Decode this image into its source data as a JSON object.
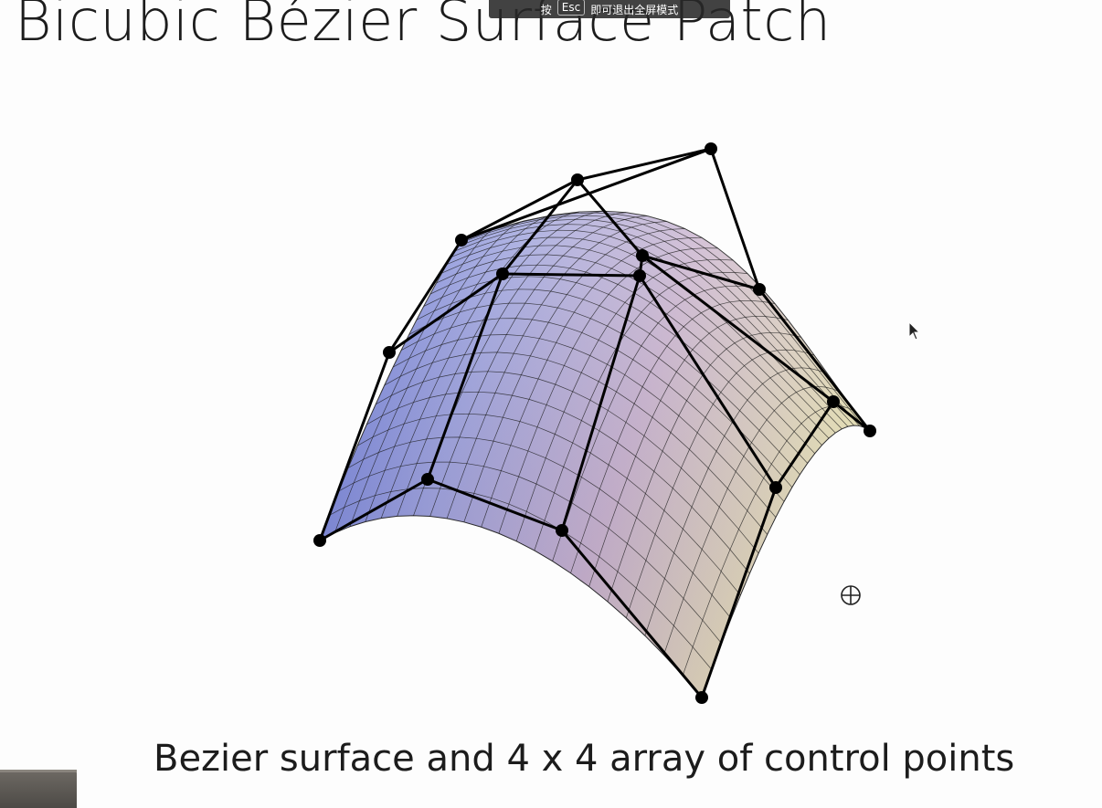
{
  "slide": {
    "title": "Bicubic Bézier Surface Patch",
    "caption": "Bezier surface and 4 x 4 array of control points"
  },
  "overlay": {
    "prefix": "按",
    "key": "Esc",
    "suffix": "即可退出全屏模式"
  },
  "figure": {
    "grid_size": "4 x 4",
    "surface_gradient": [
      "#5e72d6",
      "#a99fd0",
      "#cdb5c7",
      "#ece6b8"
    ],
    "mesh_color": "#000000"
  },
  "cursors": {
    "pointer_icon": "arrow-cursor-icon",
    "move_icon": "crosshair-cursor-icon"
  }
}
